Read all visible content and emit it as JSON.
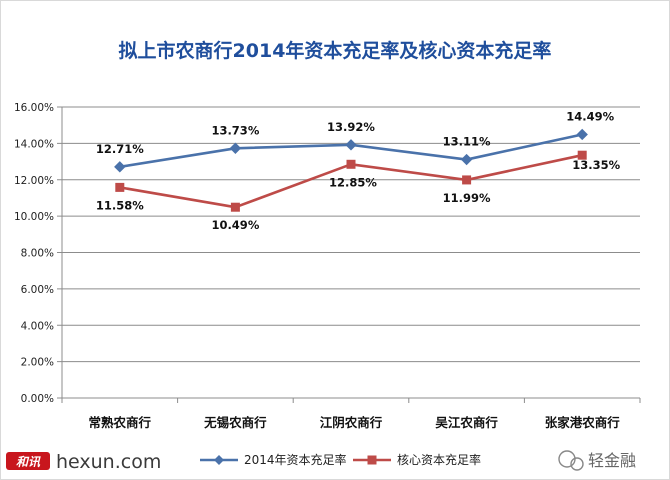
{
  "chart_data": {
    "type": "line",
    "title": "拟上市农商行2014年资本充足率及核心资本充足率",
    "categories": [
      "常熟农商行",
      "无锡农商行",
      "江阴农商行",
      "吴江农商行",
      "张家港农商行"
    ],
    "ylim": [
      0,
      16
    ],
    "yticks": [
      0,
      2,
      4,
      6,
      8,
      10,
      12,
      14,
      16
    ],
    "ytick_labels": [
      "0.00%",
      "2.00%",
      "4.00%",
      "6.00%",
      "8.00%",
      "10.00%",
      "12.00%",
      "14.00%",
      "16.00%"
    ],
    "grid": true,
    "legend_position": "bottom",
    "series": [
      {
        "name": "2014年资本充足率",
        "values": [
          12.71,
          13.73,
          13.92,
          13.11,
          14.49
        ],
        "labels": [
          "12.71%",
          "13.73%",
          "13.92%",
          "13.11%",
          "14.49%"
        ],
        "color": "#4a72aa",
        "marker": "diamond"
      },
      {
        "name": "核心资本充足率",
        "values": [
          11.58,
          10.49,
          12.85,
          11.99,
          13.35
        ],
        "labels": [
          "11.58%",
          "10.49%",
          "12.85%",
          "11.99%",
          "13.35%"
        ],
        "color": "#be4b48",
        "marker": "square"
      }
    ]
  },
  "watermarks": {
    "left_logo": "和讯",
    "left_site": "hexun.com",
    "right_brand": "轻金融"
  }
}
